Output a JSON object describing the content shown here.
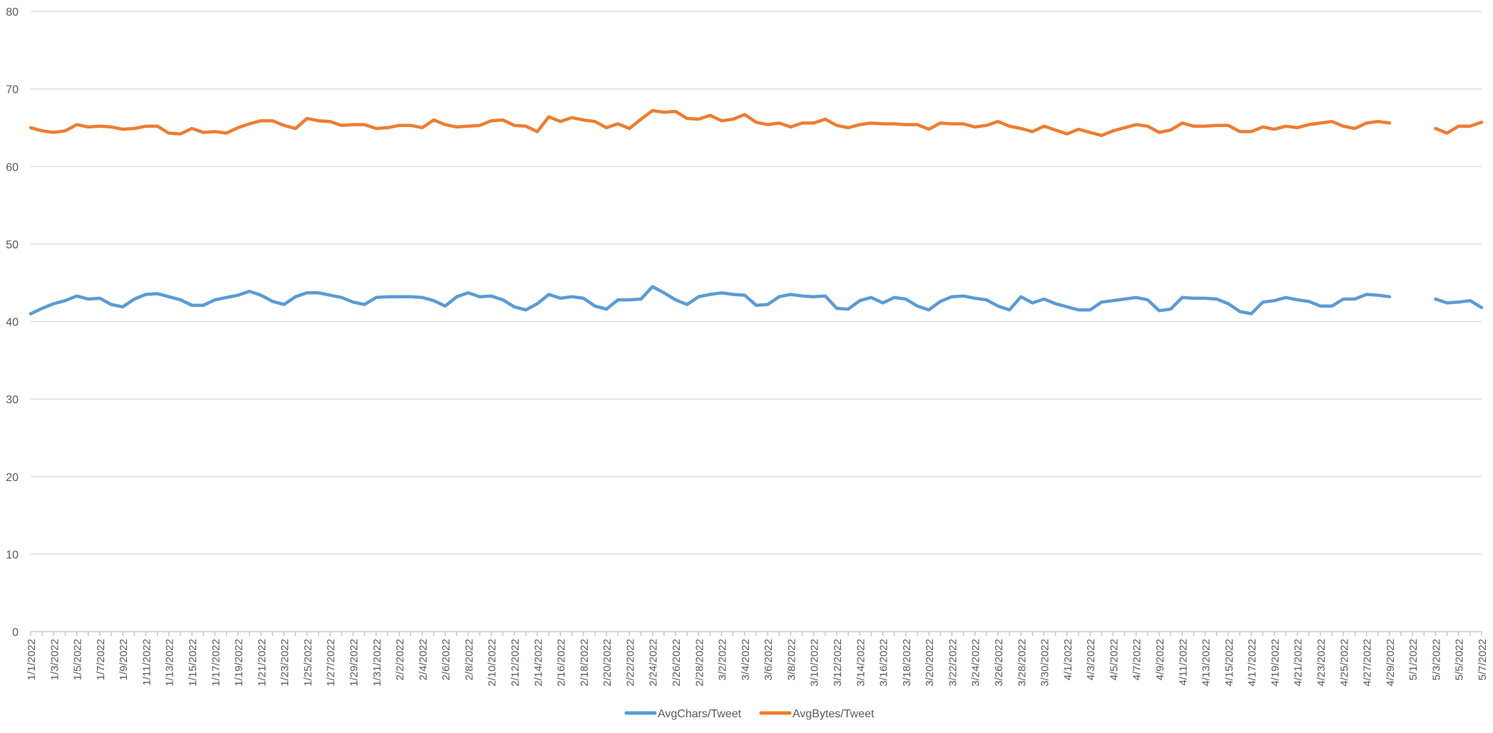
{
  "chart_data": {
    "type": "line",
    "title": "",
    "xlabel": "",
    "ylabel": "",
    "ylim": [
      0,
      80
    ],
    "yticks": [
      0,
      10,
      20,
      30,
      40,
      50,
      60,
      70,
      80
    ],
    "grid": true,
    "legend": "bottom",
    "date_start": "2022-01-01",
    "date_end": "2022-05-07",
    "x_tick_labels": [
      "1/1/2022",
      "1/3/2022",
      "1/5/2022",
      "1/7/2022",
      "1/9/2022",
      "1/11/2022",
      "1/13/2022",
      "1/15/2022",
      "1/17/2022",
      "1/19/2022",
      "1/21/2022",
      "1/23/2022",
      "1/25/2022",
      "1/27/2022",
      "1/29/2022",
      "1/31/2022",
      "2/2/2022",
      "2/4/2022",
      "2/6/2022",
      "2/8/2022",
      "2/10/2022",
      "2/12/2022",
      "2/14/2022",
      "2/16/2022",
      "2/18/2022",
      "2/20/2022",
      "2/22/2022",
      "2/24/2022",
      "2/26/2022",
      "2/28/2022",
      "3/2/2022",
      "3/4/2022",
      "3/6/2022",
      "3/8/2022",
      "3/10/2022",
      "3/12/2022",
      "3/14/2022",
      "3/16/2022",
      "3/18/2022",
      "3/20/2022",
      "3/22/2022",
      "3/24/2022",
      "3/26/2022",
      "3/28/2022",
      "3/30/2022",
      "4/1/2022",
      "4/3/2022",
      "4/5/2022",
      "4/7/2022",
      "4/9/2022",
      "4/11/2022",
      "4/13/2022",
      "4/15/2022",
      "4/17/2022",
      "4/19/2022",
      "4/21/2022",
      "4/23/2022",
      "4/25/2022",
      "4/27/2022",
      "4/29/2022",
      "5/1/2022",
      "5/3/2022",
      "5/5/2022",
      "5/7/2022"
    ],
    "series": [
      {
        "name": "AvgChars/Tweet",
        "color": "#5B9BD5",
        "values": [
          41.0,
          41.7,
          42.3,
          42.7,
          43.3,
          42.9,
          43.0,
          42.2,
          41.9,
          42.9,
          43.5,
          43.6,
          43.2,
          42.8,
          42.1,
          42.1,
          42.8,
          43.1,
          43.4,
          43.9,
          43.4,
          42.6,
          42.2,
          43.2,
          43.7,
          43.7,
          43.4,
          43.1,
          42.5,
          42.2,
          43.1,
          43.2,
          43.2,
          43.2,
          43.1,
          42.7,
          42.0,
          43.2,
          43.7,
          43.2,
          43.3,
          42.8,
          41.9,
          41.5,
          42.3,
          43.5,
          43.0,
          43.2,
          43.0,
          42.0,
          41.6,
          42.8,
          42.8,
          42.9,
          44.5,
          43.7,
          42.8,
          42.2,
          43.2,
          43.5,
          43.7,
          43.5,
          43.4,
          42.1,
          42.2,
          43.2,
          43.5,
          43.3,
          43.2,
          43.3,
          41.7,
          41.6,
          42.7,
          43.1,
          42.4,
          43.1,
          42.9,
          42.0,
          41.5,
          42.6,
          43.2,
          43.3,
          43.0,
          42.8,
          42.0,
          41.5,
          43.2,
          42.4,
          42.9,
          42.3,
          41.9,
          41.5,
          41.5,
          42.5,
          42.7,
          42.9,
          43.1,
          42.8,
          41.4,
          41.6,
          43.1,
          43.0,
          43.0,
          42.9,
          42.3,
          41.3,
          41.0,
          42.5,
          42.7,
          43.1,
          42.8,
          42.6,
          42.0,
          42.0,
          42.9,
          42.9,
          43.5,
          43.4,
          43.2,
          null,
          null,
          null,
          42.9,
          42.4,
          42.5,
          42.7,
          41.8
        ]
      },
      {
        "name": "AvgBytes/Tweet",
        "color": "#ED7D31",
        "values": [
          65.0,
          64.6,
          64.4,
          64.6,
          65.4,
          65.1,
          65.2,
          65.1,
          64.8,
          64.9,
          65.2,
          65.2,
          64.3,
          64.2,
          64.9,
          64.4,
          64.5,
          64.3,
          65.0,
          65.5,
          65.9,
          65.9,
          65.3,
          64.9,
          66.2,
          65.9,
          65.8,
          65.3,
          65.4,
          65.4,
          64.9,
          65.0,
          65.3,
          65.3,
          65.0,
          66.0,
          65.4,
          65.1,
          65.2,
          65.3,
          65.9,
          66.0,
          65.3,
          65.2,
          64.5,
          66.4,
          65.8,
          66.3,
          66.0,
          65.8,
          65.0,
          65.5,
          64.9,
          66.1,
          67.2,
          67.0,
          67.1,
          66.2,
          66.1,
          66.6,
          65.9,
          66.1,
          66.7,
          65.7,
          65.4,
          65.6,
          65.1,
          65.6,
          65.6,
          66.1,
          65.3,
          65.0,
          65.4,
          65.6,
          65.5,
          65.5,
          65.4,
          65.4,
          64.8,
          65.6,
          65.5,
          65.5,
          65.1,
          65.3,
          65.8,
          65.2,
          64.9,
          64.5,
          65.2,
          64.7,
          64.2,
          64.8,
          64.4,
          64.0,
          64.6,
          65.0,
          65.4,
          65.2,
          64.4,
          64.7,
          65.6,
          65.2,
          65.2,
          65.3,
          65.3,
          64.5,
          64.5,
          65.1,
          64.8,
          65.2,
          65.0,
          65.4,
          65.6,
          65.8,
          65.2,
          64.9,
          65.6,
          65.8,
          65.6,
          null,
          null,
          null,
          64.9,
          64.3,
          65.2,
          65.2,
          65.7
        ]
      }
    ]
  }
}
